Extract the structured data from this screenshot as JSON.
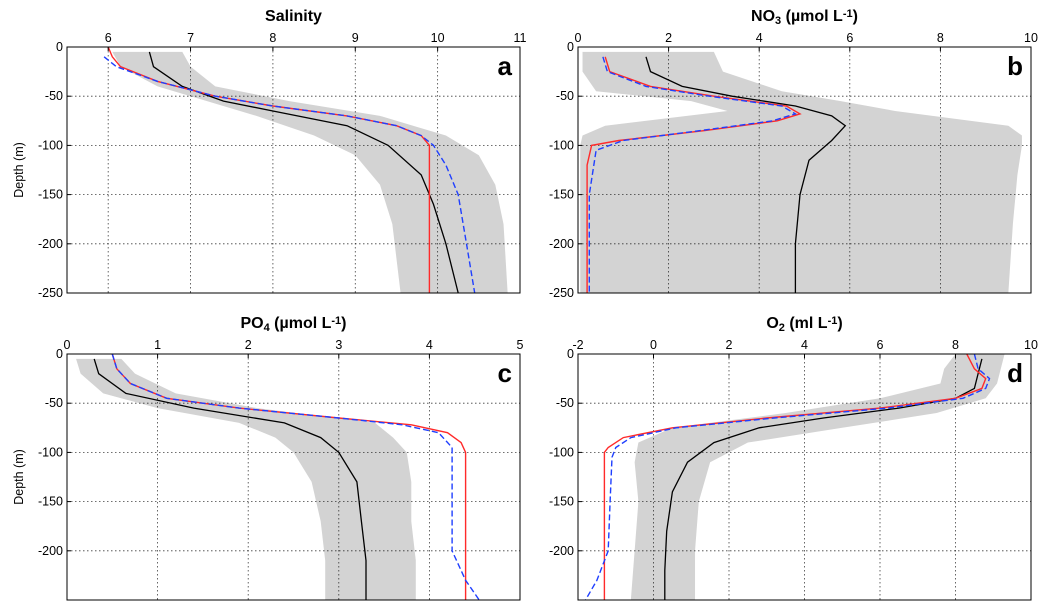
{
  "colors": {
    "band": "#d3d3d3",
    "mean": "#000000",
    "red": "#ff2a2a",
    "blue": "#1f3fff"
  },
  "chart_data": [
    {
      "type": "line",
      "label": "a",
      "title": "Salinity",
      "title_sub": "",
      "title_unit": "",
      "ylabel": "Depth (m)",
      "xlim": [
        5.5,
        11
      ],
      "ylim": [
        -250,
        0
      ],
      "xticks": [
        6,
        7,
        8,
        9,
        10,
        11
      ],
      "yticks": [
        0,
        -50,
        -100,
        -150,
        -200,
        -250
      ],
      "grid": true,
      "band": {
        "depth": [
          -5,
          -20,
          -40,
          -55,
          -70,
          -90,
          -110,
          -140,
          -180,
          -250
        ],
        "lower": [
          6.05,
          6.15,
          6.6,
          7.2,
          7.8,
          8.5,
          9.0,
          9.3,
          9.45,
          9.55
        ],
        "upper": [
          6.9,
          7.0,
          7.3,
          8.2,
          9.3,
          10.1,
          10.5,
          10.7,
          10.8,
          10.85
        ]
      },
      "series": [
        {
          "color": "mean",
          "dash": false,
          "depth": [
            -5,
            -20,
            -40,
            -55,
            -65,
            -80,
            -100,
            -130,
            -160,
            -200,
            -250
          ],
          "values": [
            6.5,
            6.55,
            6.9,
            7.4,
            8.0,
            8.9,
            9.4,
            9.8,
            9.95,
            10.1,
            10.25
          ]
        },
        {
          "color": "red",
          "dash": false,
          "depth": [
            0,
            -10,
            -20,
            -35,
            -50,
            -60,
            -70,
            -80,
            -90,
            -100,
            -250
          ],
          "values": [
            6.0,
            6.05,
            6.15,
            6.6,
            7.3,
            8.0,
            8.9,
            9.5,
            9.8,
            9.9,
            9.9
          ]
        },
        {
          "color": "blue",
          "dash": true,
          "depth": [
            -10,
            -20,
            -35,
            -50,
            -60,
            -70,
            -80,
            -90,
            -100,
            -120,
            -150,
            -200,
            -250
          ],
          "values": [
            5.95,
            6.1,
            6.6,
            7.3,
            8.0,
            8.9,
            9.5,
            9.8,
            9.95,
            10.1,
            10.25,
            10.35,
            10.45
          ]
        }
      ]
    },
    {
      "type": "line",
      "label": "b",
      "title": "NO",
      "title_sub": "3",
      "title_unit": "(µmol L",
      "title_sup": "-1",
      "title_end": ")",
      "ylabel": "",
      "xlim": [
        0,
        10
      ],
      "ylim": [
        -250,
        0
      ],
      "xticks": [
        0,
        2,
        4,
        6,
        8,
        10
      ],
      "yticks": [
        0,
        -50,
        -100,
        -150,
        -200,
        -250
      ],
      "grid": true,
      "band": {
        "depth": [
          -5,
          -25,
          -45,
          -55,
          -65,
          -80,
          -90,
          -100,
          -130,
          -180,
          -250
        ],
        "lower": [
          0.1,
          0.1,
          0.4,
          2.5,
          3.3,
          0.6,
          0.1,
          0.05,
          0.05,
          0.05,
          0.05
        ],
        "upper": [
          3.0,
          3.2,
          4.5,
          5.8,
          7.0,
          9.5,
          9.8,
          9.8,
          9.7,
          9.6,
          9.5
        ]
      },
      "series": [
        {
          "color": "mean",
          "dash": false,
          "depth": [
            -10,
            -25,
            -40,
            -50,
            -60,
            -70,
            -80,
            -95,
            -115,
            -150,
            -200,
            -250
          ],
          "values": [
            1.5,
            1.6,
            2.3,
            3.4,
            4.8,
            5.6,
            5.9,
            5.6,
            5.1,
            4.9,
            4.8,
            4.8
          ]
        },
        {
          "color": "red",
          "dash": false,
          "depth": [
            -10,
            -25,
            -40,
            -50,
            -60,
            -68,
            -75,
            -85,
            -95,
            -100,
            -120,
            -250
          ],
          "values": [
            0.6,
            0.7,
            1.6,
            3.0,
            4.6,
            4.9,
            4.4,
            2.8,
            0.9,
            0.3,
            0.2,
            0.2
          ]
        },
        {
          "color": "blue",
          "dash": true,
          "depth": [
            -10,
            -25,
            -40,
            -50,
            -60,
            -68,
            -75,
            -85,
            -95,
            -105,
            -150,
            -250
          ],
          "values": [
            0.55,
            0.65,
            1.5,
            2.9,
            4.5,
            4.8,
            4.3,
            2.7,
            1.0,
            0.4,
            0.25,
            0.25
          ]
        }
      ]
    },
    {
      "type": "line",
      "label": "c",
      "title": "PO",
      "title_sub": "4",
      "title_unit": "(µmol L",
      "title_sup": "-1",
      "title_end": ")",
      "ylabel": "Depth (m)",
      "xlim": [
        0,
        5
      ],
      "ylim": [
        -250,
        0
      ],
      "xticks": [
        0,
        1,
        2,
        3,
        4,
        5
      ],
      "yticks": [
        0,
        -50,
        -100,
        -150,
        -200
      ],
      "grid": true,
      "band": {
        "depth": [
          -5,
          -20,
          -40,
          -55,
          -70,
          -85,
          -100,
          -130,
          -170,
          -210,
          -250
        ],
        "lower": [
          0.1,
          0.15,
          0.4,
          1.0,
          1.9,
          2.3,
          2.5,
          2.7,
          2.8,
          2.85,
          2.85
        ],
        "upper": [
          0.6,
          0.75,
          1.2,
          2.1,
          3.4,
          3.6,
          3.75,
          3.8,
          3.8,
          3.85,
          3.85
        ]
      },
      "series": [
        {
          "color": "mean",
          "dash": false,
          "depth": [
            -5,
            -20,
            -40,
            -55,
            -70,
            -85,
            -100,
            -130,
            -170,
            -210,
            -250
          ],
          "values": [
            0.3,
            0.35,
            0.65,
            1.4,
            2.4,
            2.8,
            3.0,
            3.2,
            3.25,
            3.3,
            3.3
          ]
        },
        {
          "color": "red",
          "dash": false,
          "depth": [
            0,
            -15,
            -30,
            -45,
            -55,
            -65,
            -72,
            -80,
            -90,
            -100,
            -250
          ],
          "values": [
            0.5,
            0.55,
            0.7,
            1.1,
            1.9,
            3.0,
            3.8,
            4.2,
            4.35,
            4.4,
            4.4
          ]
        },
        {
          "color": "blue",
          "dash": true,
          "depth": [
            0,
            -15,
            -30,
            -45,
            -55,
            -65,
            -72,
            -80,
            -95,
            -120,
            -200,
            -230,
            -250
          ],
          "values": [
            0.5,
            0.55,
            0.7,
            1.1,
            1.9,
            3.0,
            3.7,
            4.1,
            4.25,
            4.25,
            4.25,
            4.4,
            4.55
          ]
        }
      ]
    },
    {
      "type": "line",
      "label": "d",
      "title": "O",
      "title_sub": "2",
      "title_unit": "(ml L",
      "title_sup": "-1",
      "title_end": ")",
      "ylabel": "",
      "xlim": [
        -2,
        10
      ],
      "ylim": [
        -250,
        0
      ],
      "xticks": [
        -2,
        0,
        2,
        4,
        6,
        8,
        10
      ],
      "yticks": [
        0,
        -50,
        -100,
        -150,
        -200
      ],
      "grid": true,
      "band": {
        "depth": [
          0,
          -15,
          -30,
          -45,
          -60,
          -75,
          -90,
          -110,
          -150,
          -200,
          -250
        ],
        "lower": [
          8.0,
          7.7,
          7.6,
          6.0,
          3.5,
          0.5,
          -0.4,
          -0.5,
          -0.4,
          -0.5,
          -0.6
        ],
        "upper": [
          9.3,
          9.2,
          9.1,
          8.8,
          7.5,
          5.0,
          2.5,
          1.5,
          1.2,
          1.1,
          1.1
        ]
      },
      "series": [
        {
          "color": "mean",
          "dash": false,
          "depth": [
            -5,
            -20,
            -35,
            -45,
            -55,
            -65,
            -75,
            -90,
            -110,
            -140,
            -180,
            -220,
            -250
          ],
          "values": [
            8.7,
            8.6,
            8.5,
            8.0,
            6.5,
            4.5,
            2.8,
            1.6,
            0.9,
            0.5,
            0.35,
            0.3,
            0.3
          ]
        },
        {
          "color": "red",
          "dash": false,
          "depth": [
            0,
            -15,
            -25,
            -35,
            -45,
            -55,
            -65,
            -75,
            -85,
            -95,
            -100,
            -250
          ],
          "values": [
            8.3,
            8.5,
            8.8,
            8.7,
            8.0,
            6.0,
            3.0,
            0.5,
            -0.8,
            -1.2,
            -1.3,
            -1.3
          ]
        },
        {
          "color": "blue",
          "dash": true,
          "depth": [
            0,
            -15,
            -25,
            -35,
            -45,
            -55,
            -65,
            -75,
            -85,
            -95,
            -105,
            -150,
            -200,
            -230,
            -250
          ],
          "values": [
            8.5,
            8.6,
            8.9,
            8.8,
            8.2,
            6.2,
            3.2,
            0.6,
            -0.6,
            -1.0,
            -1.1,
            -1.15,
            -1.2,
            -1.5,
            -1.8
          ]
        }
      ]
    }
  ]
}
